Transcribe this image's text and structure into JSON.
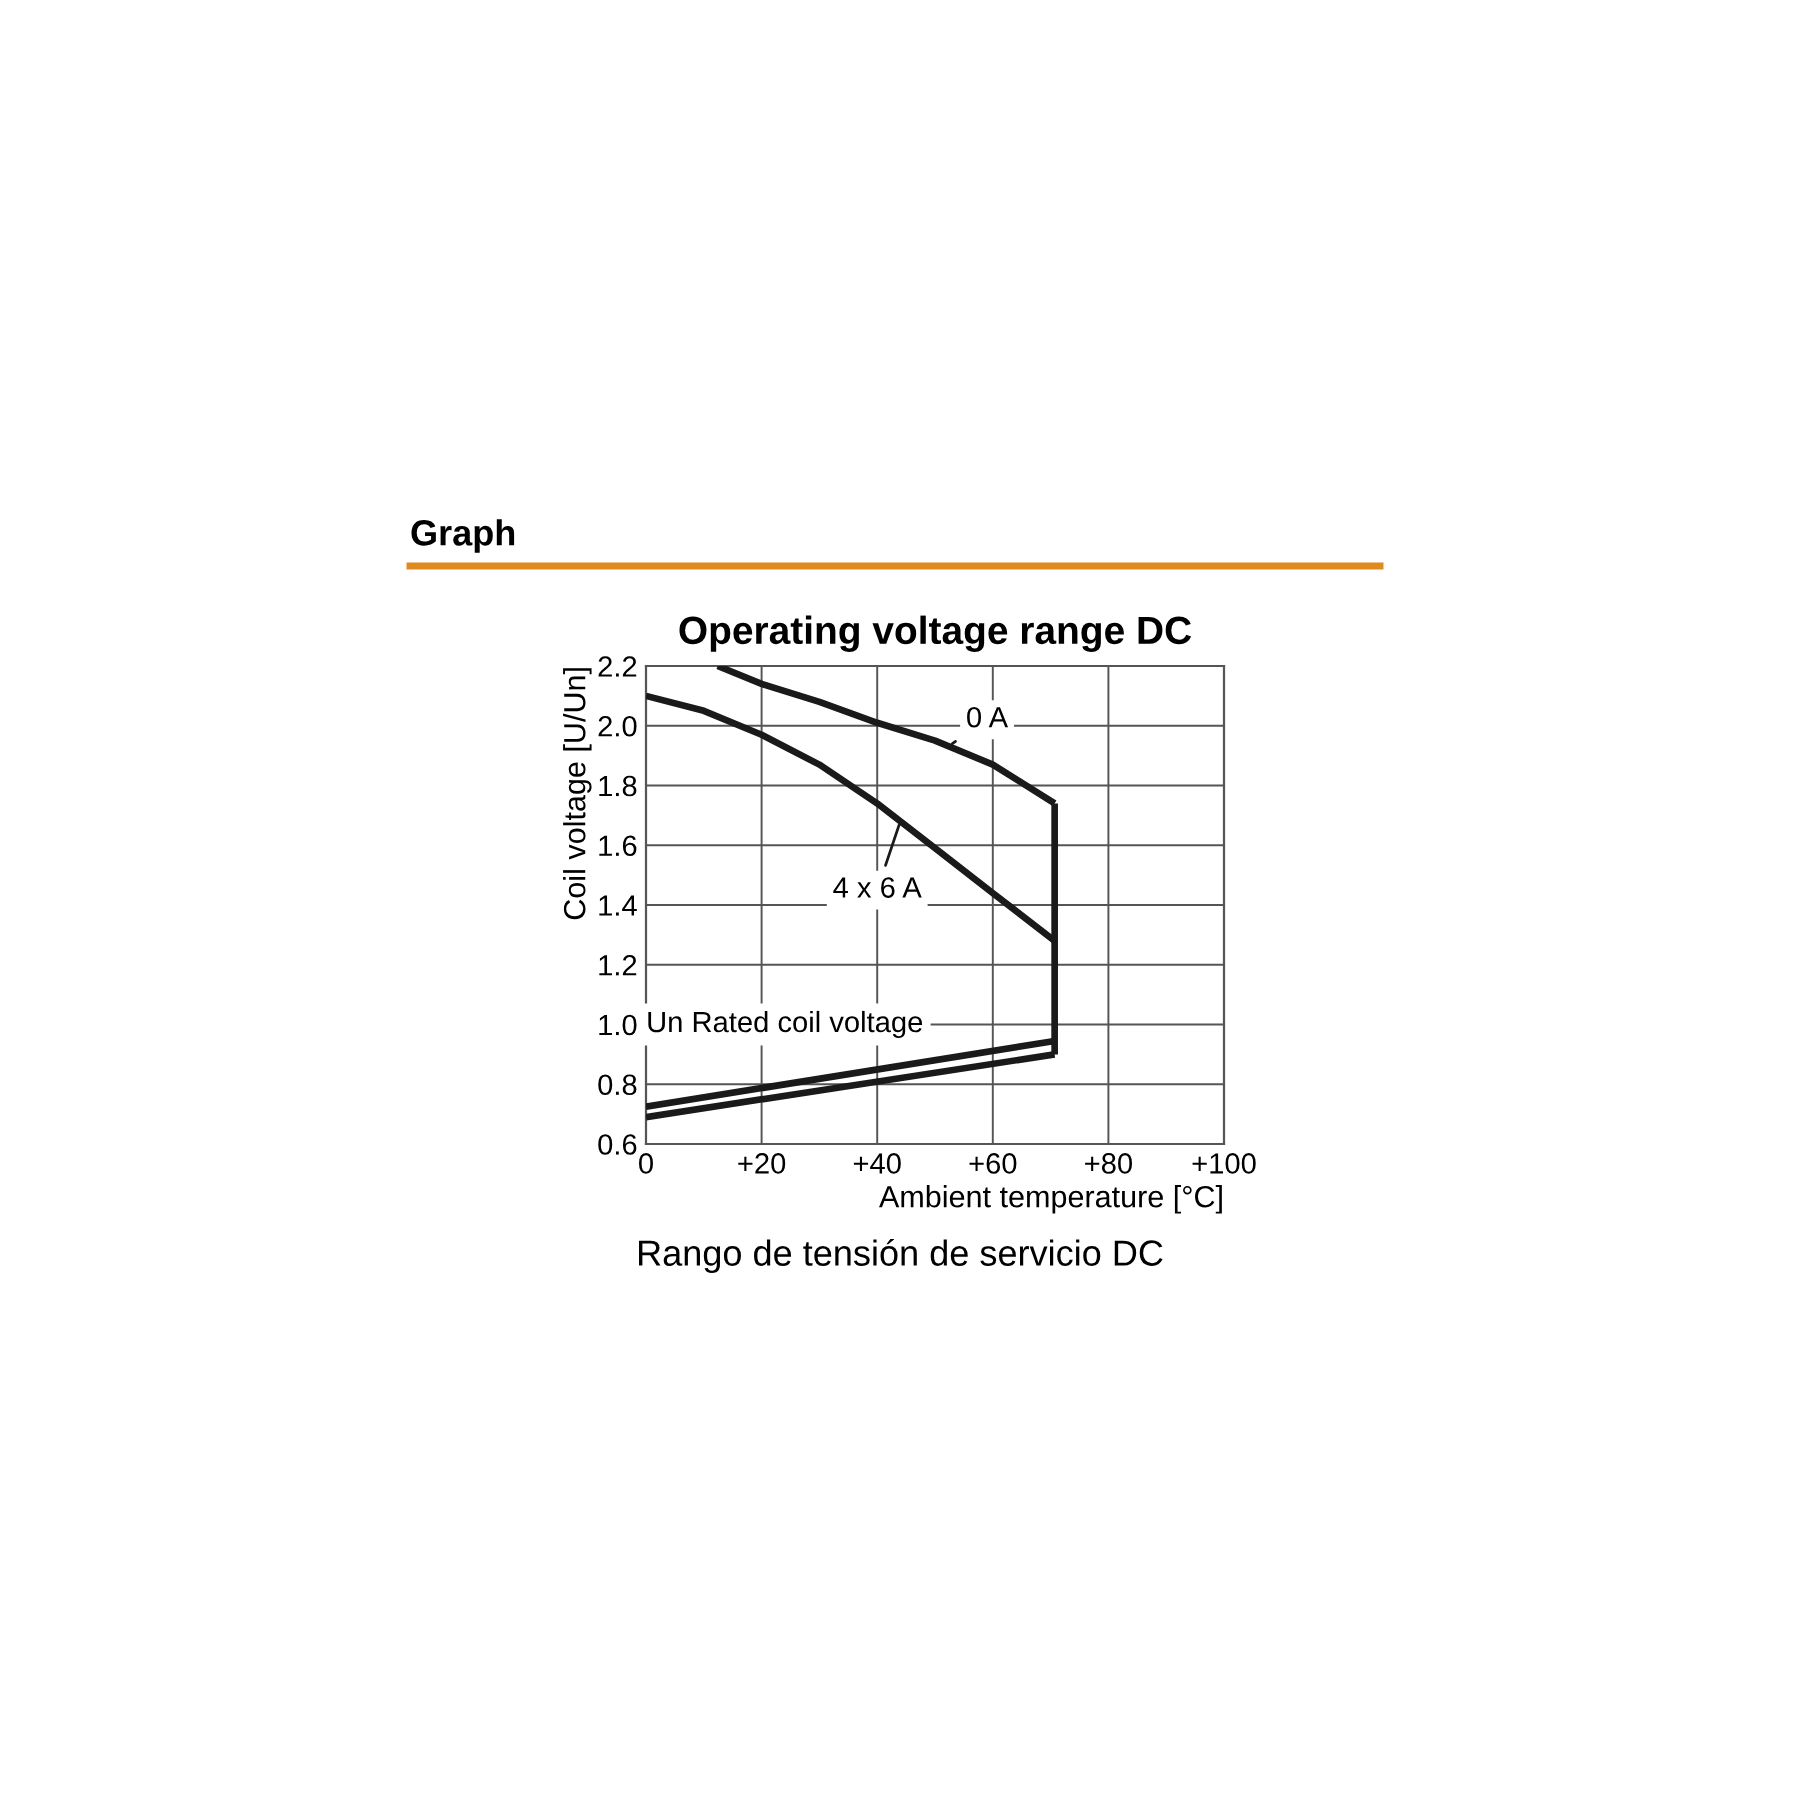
{
  "chart_data": {
    "type": "line",
    "title": "Operating voltage range DC",
    "xlabel": "Ambient temperature [°C]",
    "ylabel": "Coil voltage [U/Un]",
    "series": [
      {
        "color": "#1a1a1a",
        "x": [
          12.4,
          20,
          30,
          40,
          50,
          60,
          70.7
        ],
        "values": [
          2.2,
          2.14,
          2.08,
          2.01,
          1.95,
          1.87,
          1.74
        ]
      },
      {
        "color": "#1a1a1a",
        "x": [
          0,
          10,
          20,
          30,
          40,
          50,
          60,
          70.7
        ],
        "values": [
          2.1,
          2.05,
          1.97,
          1.87,
          1.74,
          1.59,
          1.44,
          1.28
        ]
      },
      {
        "color": "#1a1a1a",
        "x": [
          70.7,
          70.7
        ],
        "values": [
          1.74,
          0.9
        ]
      },
      {
        "color": "#1a1a1a",
        "x": [
          0,
          70.7
        ],
        "values": [
          0.725,
          0.945
        ]
      },
      {
        "color": "#1a1a1a",
        "x": [
          0,
          70.7
        ],
        "values": [
          0.69,
          0.9
        ]
      }
    ],
    "annotations": [
      {
        "text": "0 A",
        "x": 53,
        "y": 1.94
      },
      {
        "text": "4 x 6 A",
        "x": 44,
        "y": 1.68
      },
      "Un Rated coil voltage",
      "Graph",
      "Rango de tensión de servicio DC"
    ],
    "xlim": [
      0,
      100
    ],
    "xticks": [
      0,
      {
        "value": 20,
        "label": "+20"
      },
      {
        "value": 40,
        "label": "+40"
      },
      {
        "value": 60,
        "label": "+60"
      },
      {
        "value": 80,
        "label": "+80"
      },
      {
        "value": 100,
        "label": "+100"
      }
    ],
    "ylim": [
      0.6,
      2.2
    ],
    "yticks": [
      {
        "value": 0.6,
        "label": "0.6"
      },
      {
        "value": 0.8,
        "label": "0.8"
      },
      {
        "value": 1.0,
        "label": "1.0"
      },
      {
        "value": 1.2,
        "label": "1.2"
      },
      {
        "value": 1.4,
        "label": "1.4"
      },
      {
        "value": 1.6,
        "label": "1.6"
      },
      {
        "value": 1.8,
        "label": "1.8"
      },
      {
        "value": 2.0,
        "label": "2.0"
      },
      {
        "value": 2.2,
        "label": "2.2"
      }
    ],
    "grid": true,
    "marker": "none",
    "line_style": "solid"
  }
}
